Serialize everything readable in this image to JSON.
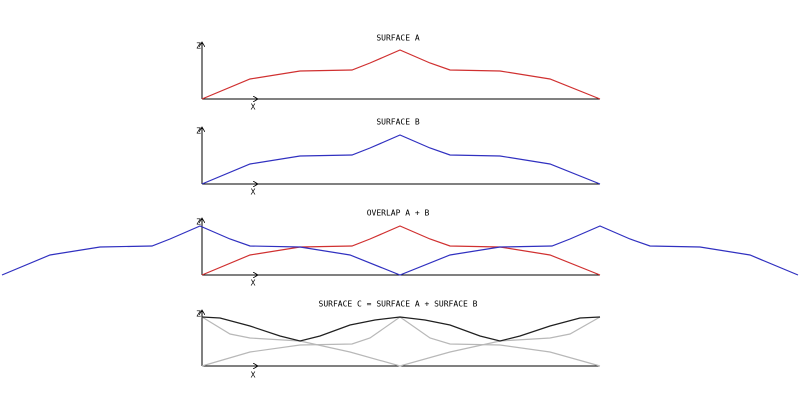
{
  "panels": [
    {
      "title": "SURFACE A",
      "z_label": "Z",
      "x_label": "X"
    },
    {
      "title": "SURFACE B",
      "z_label": "Z",
      "x_label": "X"
    },
    {
      "title": "OVERLAP A + B",
      "z_label": "Z",
      "x_label": "X"
    },
    {
      "title": "SURFACE C = SURFACE A + SURFACE B",
      "z_label": "Z",
      "x_label": "X"
    }
  ]
}
